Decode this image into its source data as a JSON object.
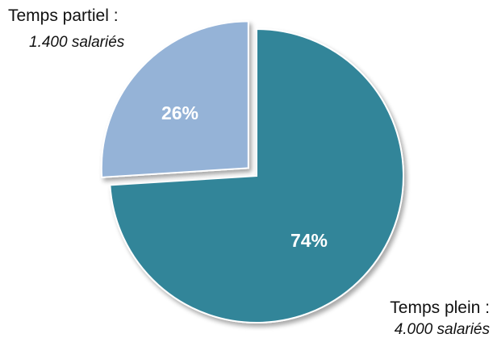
{
  "chart_data": {
    "type": "pie",
    "slices": [
      {
        "label": "Temps plein :",
        "sublabel": "4.000 salariés",
        "value": 74,
        "value_label": "74%",
        "color": "#328599",
        "exploded": false
      },
      {
        "label": "Temps partiel :",
        "sublabel": "1.400 salariés",
        "value": 26,
        "value_label": "26%",
        "color": "#95b3d7",
        "exploded": true
      }
    ],
    "legend": "none"
  }
}
